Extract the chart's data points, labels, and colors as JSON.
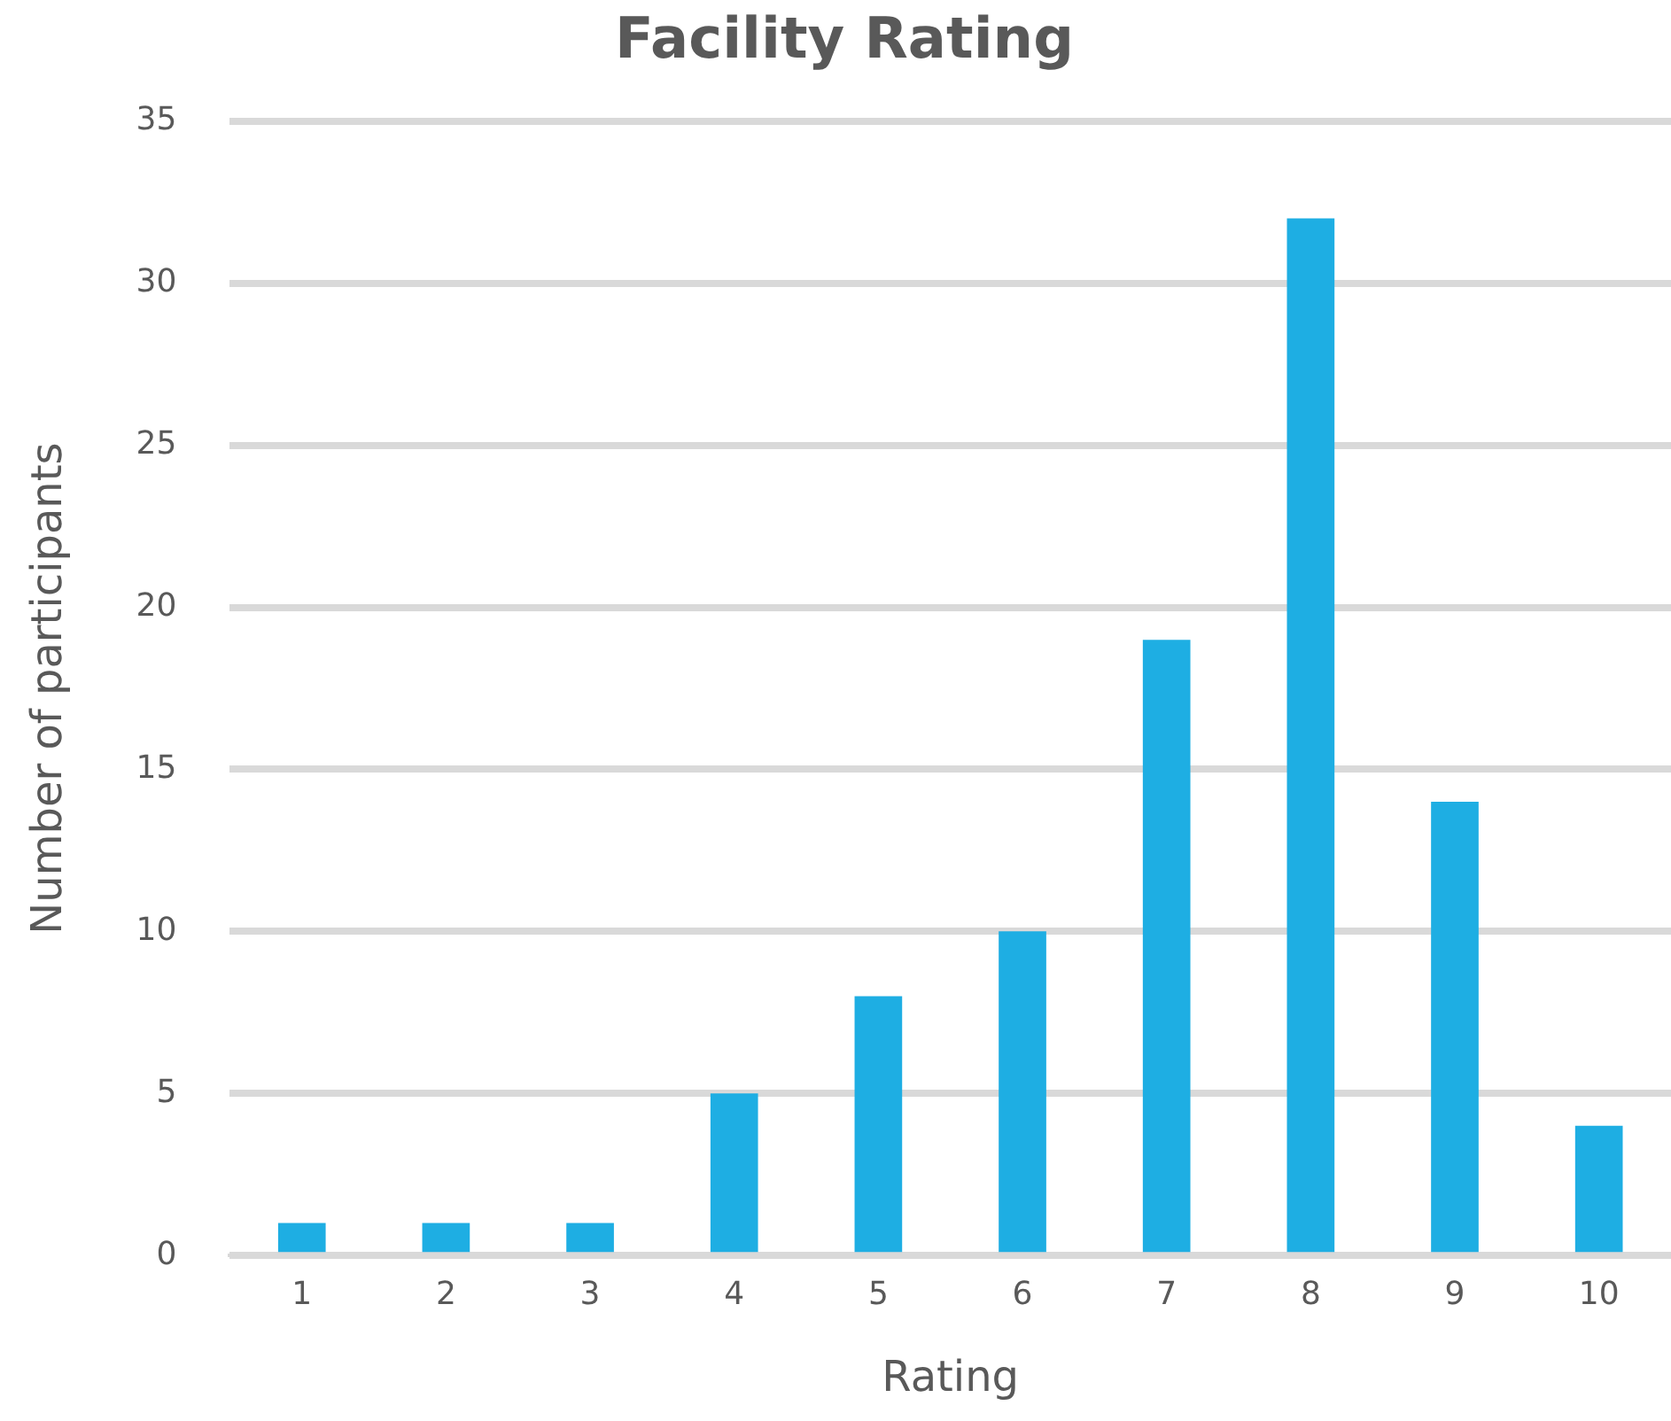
{
  "chart_data": {
    "type": "bar",
    "title": "Facility Rating",
    "xlabel": "Rating",
    "ylabel": "Number of participants",
    "categories": [
      "1",
      "2",
      "3",
      "4",
      "5",
      "6",
      "7",
      "8",
      "9",
      "10"
    ],
    "values": [
      1,
      1,
      1,
      5,
      8,
      10,
      19,
      32,
      14,
      4
    ],
    "color": "#1eaee3",
    "ylim": [
      0,
      35
    ],
    "yticks": [
      0,
      5,
      10,
      15,
      20,
      25,
      30,
      35
    ],
    "grid": "y",
    "legend": false
  }
}
